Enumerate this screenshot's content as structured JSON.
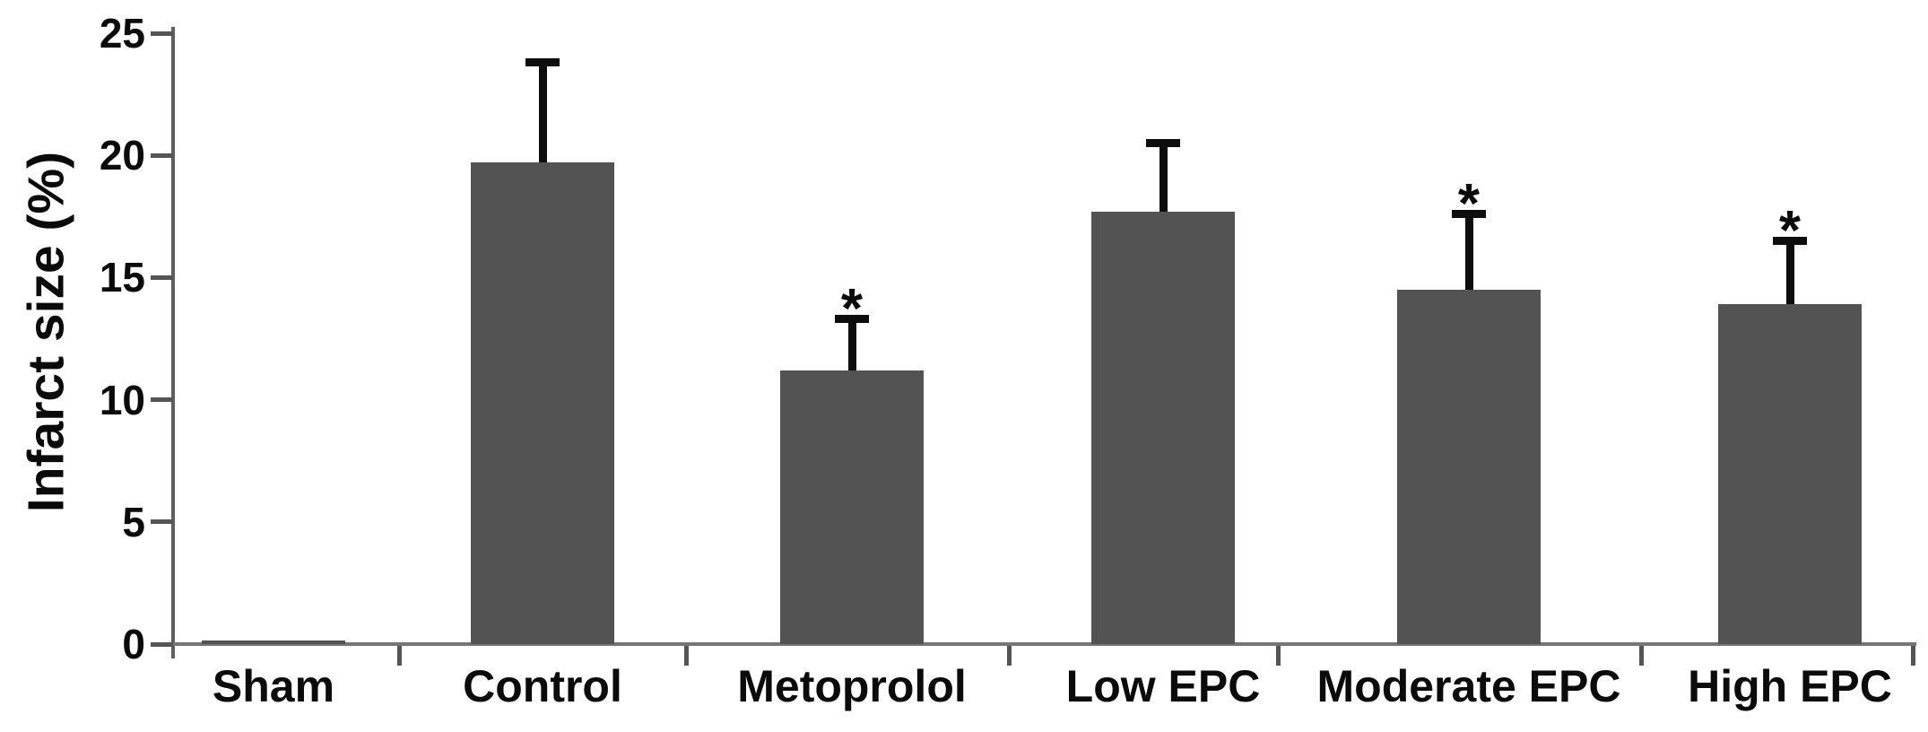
{
  "chart_data": {
    "type": "bar",
    "title": "",
    "xlabel": "",
    "ylabel": "Infarct size (%)",
    "categories": [
      "Sham",
      "Control",
      "Metoprolol",
      "Low EPC",
      "Moderate EPC",
      "High EPC"
    ],
    "values": [
      0.15,
      19.7,
      11.2,
      17.7,
      14.5,
      13.9
    ],
    "errors_upper": [
      0,
      4.1,
      2.1,
      2.8,
      3.1,
      2.6
    ],
    "significant": [
      false,
      false,
      true,
      false,
      true,
      true
    ],
    "significance_marker": "*",
    "ylim": [
      0,
      25
    ],
    "yticks": [
      0,
      5,
      10,
      15,
      20,
      25
    ],
    "ytick_labels": [
      "0",
      "5",
      "10",
      "15",
      "20",
      "25"
    ],
    "grid": false,
    "legend": "none",
    "bar_color": "#535353",
    "axis_color": "#5f5f5f",
    "text_color": "#0a0a0a"
  }
}
